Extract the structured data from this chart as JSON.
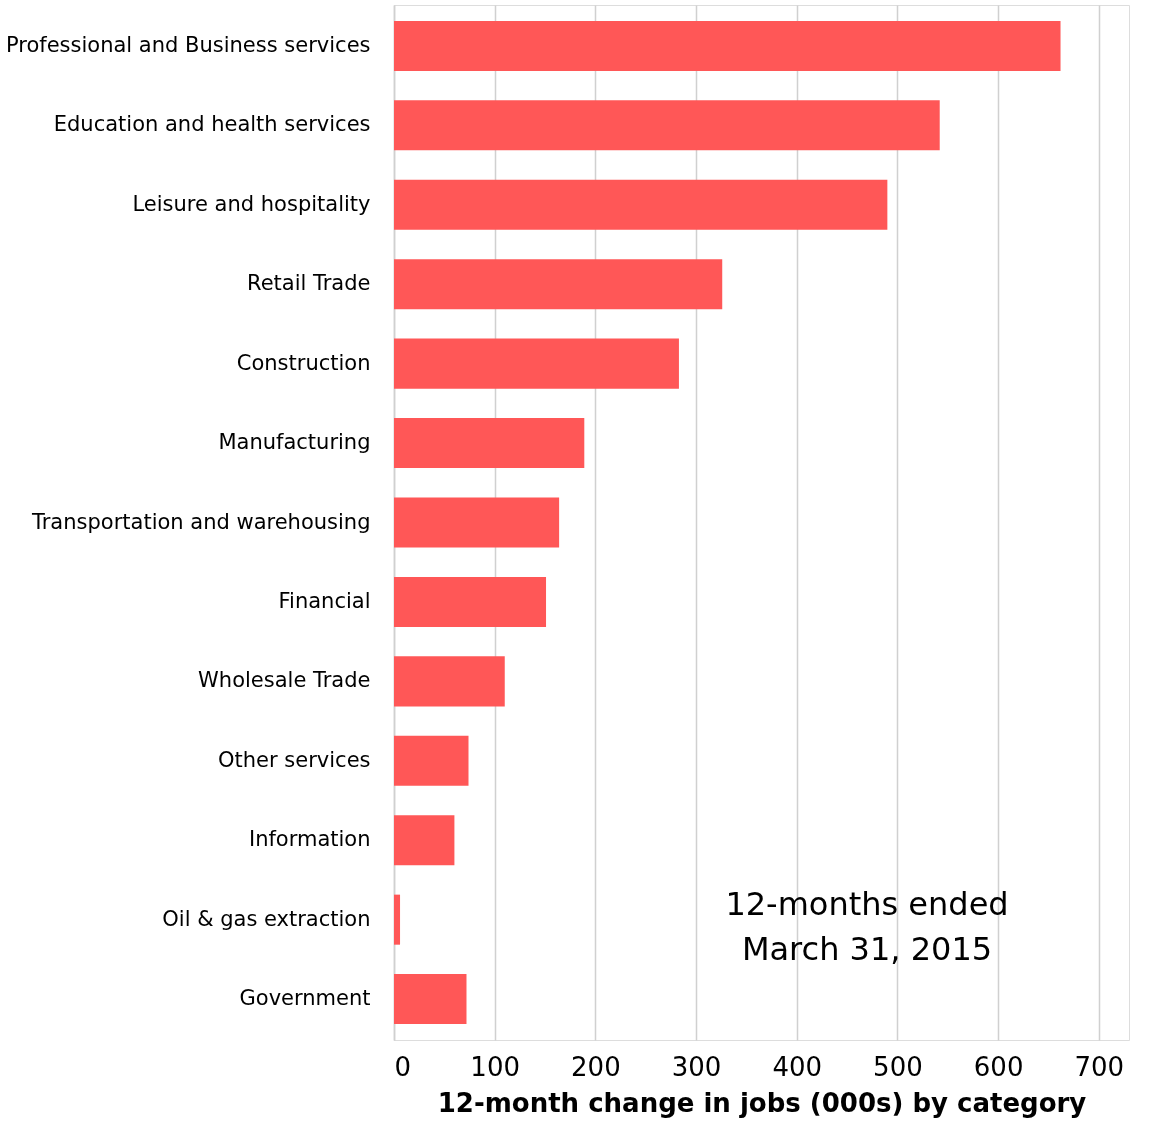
{
  "chart_data": {
    "type": "bar",
    "orientation": "horizontal",
    "xlabel": "12-month change in jobs (000s) by category",
    "categories": [
      "Professional and Business services",
      "Education and health services",
      "Leisure and hospitality",
      "Retail Trade",
      "Construction",
      "Manufacturing",
      "Transportation and warehousing",
      "Financial",
      "Wholesale Trade",
      "Other services",
      "Information",
      "Oil & gas extraction",
      "Government"
    ],
    "values": [
      662,
      542,
      490,
      326,
      283,
      189,
      164,
      151,
      110,
      74,
      60,
      6,
      72
    ],
    "color": "#ff5757",
    "xlim": [
      0,
      730
    ],
    "xticks": [
      0,
      100,
      200,
      300,
      400,
      500,
      600,
      700
    ],
    "grid": "x",
    "annotations": [
      "12-months ended\nMarch 31, 2015"
    ]
  }
}
